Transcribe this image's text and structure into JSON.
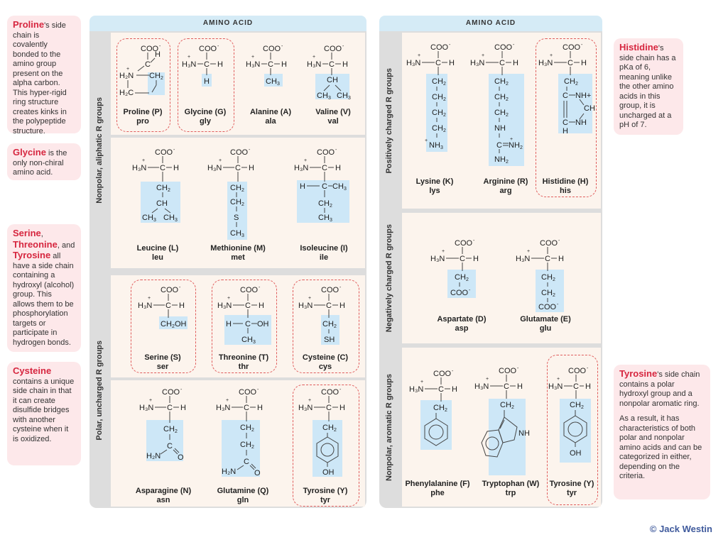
{
  "header": {
    "left": "AMINO ACID",
    "right": "AMINO ACID"
  },
  "groups": {
    "aliphatic": "Nonpolar, aliphatic R groups",
    "polar": "Polar, uncharged R groups",
    "positive": "Positively charged R groups",
    "negative": "Negatively charged R groups",
    "aromatic": "Nonpolar, aromatic R groups"
  },
  "notes": {
    "proline": {
      "term": "Proline",
      "text": "'s side chain is covalently bonded to the amino group present on the alpha carbon. This hyper-rigid ring structure creates kinks in the polypeptide structure."
    },
    "glycine": {
      "term": "Glycine",
      "text": " is the only non-chiral amino acid."
    },
    "serine": {
      "t1": "Serine",
      "sep1": ",",
      "t2": "Threonine",
      "sep2": ", and",
      "t3": "Tyrosine",
      "text": " all have a side chain containing a hydroxyl (alcohol) group. This allows them to be phosphorylation targets or participate in hydrogen bonds."
    },
    "cysteine": {
      "term": "Cysteine",
      "text": " contains a unique side chain in that it can create disulfide bridges with another cysteine when it is oxidized."
    },
    "histidine": {
      "term": "Histidine",
      "text": "'s side chain has a pKa of 6, meaning unlike the other amino acids in this group, it is uncharged at a pH of 7."
    },
    "tyrosine": {
      "term": "Tyrosine",
      "text": "'s side chain contains a polar hydroxyl group and a nonpolar aromatic ring.",
      "text2": "As a result, it has characteristics of both polar and nonpolar amino acids and can be categorized in either, depending on the criteria."
    }
  },
  "amino_acids": {
    "pro": {
      "name": "Proline (P)",
      "abbr": "pro"
    },
    "gly": {
      "name": "Glycine (G)",
      "abbr": "gly"
    },
    "ala": {
      "name": "Alanine (A)",
      "abbr": "ala"
    },
    "val": {
      "name": "Valine (V)",
      "abbr": "val"
    },
    "leu": {
      "name": "Leucine (L)",
      "abbr": "leu"
    },
    "met": {
      "name": "Methionine (M)",
      "abbr": "met"
    },
    "ile": {
      "name": "Isoleucine (I)",
      "abbr": "ile"
    },
    "ser": {
      "name": "Serine (S)",
      "abbr": "ser"
    },
    "thr": {
      "name": "Threonine (T)",
      "abbr": "thr"
    },
    "cys": {
      "name": "Cysteine (C)",
      "abbr": "cys"
    },
    "asn": {
      "name": "Asparagine (N)",
      "abbr": "asn"
    },
    "gln": {
      "name": "Glutamine (Q)",
      "abbr": "gln"
    },
    "tyr1": {
      "name": "Tyrosine (Y)",
      "abbr": "tyr"
    },
    "lys": {
      "name": "Lysine (K)",
      "abbr": "lys"
    },
    "arg": {
      "name": "Arginine (R)",
      "abbr": "arg"
    },
    "his": {
      "name": "Histidine (H)",
      "abbr": "his"
    },
    "asp": {
      "name": "Aspartate (D)",
      "abbr": "asp"
    },
    "glu": {
      "name": "Glutamate (E)",
      "abbr": "glu"
    },
    "phe": {
      "name": "Phenylalanine (F)",
      "abbr": "phe"
    },
    "trp": {
      "name": "Tryptophan (W)",
      "abbr": "trp"
    },
    "tyr2": {
      "name": "Tyrosine (Y)",
      "abbr": "tyr"
    }
  },
  "copyright": "© Jack Westin",
  "colors": {
    "accent": "#d6263f",
    "note_bg": "#fde8ea",
    "header_bg": "#d5ebf6",
    "section_bg": "#fcf4ed",
    "highlight": "#cde7f7",
    "dashed": "#e05c5c",
    "panel": "#dddddd"
  }
}
